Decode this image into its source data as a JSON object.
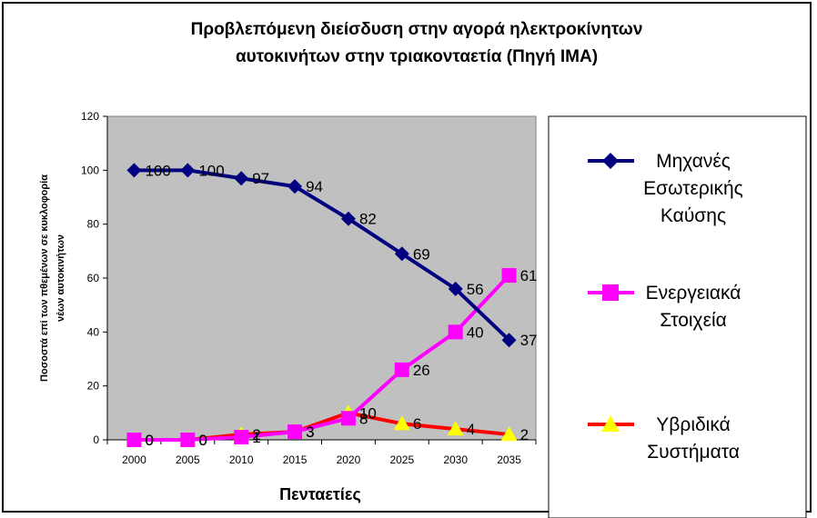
{
  "chart_data": {
    "type": "line",
    "title_lines": [
      "Προβλεπόμενη διείσδυση στην αγορά ηλεκτροκίνητων",
      "αυτοκινήτων στην τριακονταετία (Πηγή IMA)"
    ],
    "xlabel": "Πενταετίες",
    "ylabel_lines": [
      "Ποσοστά επί των πθεμένων σε κυκλοφορία",
      "νέων αυτοκινήτων"
    ],
    "categories": [
      "2000",
      "2005",
      "2010",
      "2015",
      "2020",
      "2025",
      "2030",
      "2035"
    ],
    "ylim": [
      0,
      120
    ],
    "yticks": [
      0,
      20,
      40,
      60,
      80,
      100,
      120
    ],
    "plot_background": "#c0c0c0",
    "grid": false,
    "legend_position": "right",
    "series": [
      {
        "name_lines": [
          "Μηχανές",
          "Εσωτερικής",
          "Καύσης"
        ],
        "values": [
          100,
          100,
          97,
          94,
          82,
          69,
          56,
          37
        ],
        "data_labels": [
          "100",
          "100",
          "97",
          "94",
          "82",
          "69",
          "56",
          "37"
        ],
        "color": "#000080",
        "marker": "diamond"
      },
      {
        "name_lines": [
          "Ενεργειακά",
          "Στοιχεία"
        ],
        "values": [
          0,
          0,
          1,
          3,
          8,
          26,
          40,
          61
        ],
        "data_labels": [
          "0",
          "0",
          "1",
          "3",
          "8",
          "26",
          "40",
          "61"
        ],
        "color": "#ff00ff",
        "marker": "square"
      },
      {
        "name_lines": [
          "Υβριδικά",
          "Συστήματα"
        ],
        "values": [
          0,
          0,
          2,
          3,
          10,
          6,
          4,
          2
        ],
        "data_labels": [
          "0",
          "0",
          "2",
          "3",
          "10",
          "6",
          "4",
          "2"
        ],
        "color": "#ff0000",
        "marker": "triangle",
        "marker_color": "#ffff00"
      }
    ]
  }
}
